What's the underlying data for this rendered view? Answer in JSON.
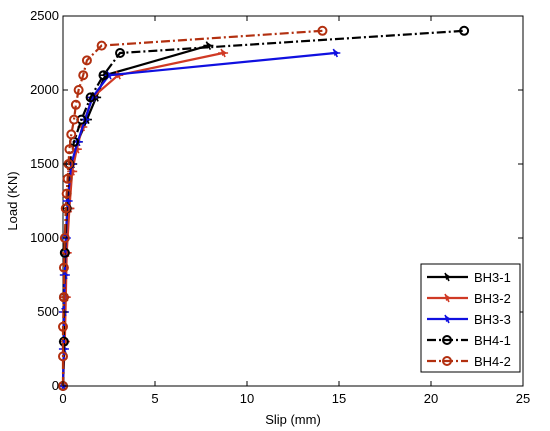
{
  "chart_data": {
    "type": "line",
    "xlabel": "Slip (mm)",
    "ylabel": "Load (KN)",
    "xlim": [
      0,
      25
    ],
    "ylim": [
      0,
      2500
    ],
    "xticks": [
      "0",
      "5",
      "10",
      "15",
      "20",
      "25"
    ],
    "yticks": [
      "0",
      "500",
      "1000",
      "1500",
      "2000",
      "2500"
    ],
    "grid": false,
    "legend_position": "bottom-right",
    "series": [
      {
        "name": "BH3-1",
        "color": "#000000",
        "dash": "solid",
        "marker": "star",
        "points": [
          [
            0,
            0
          ],
          [
            0.05,
            300
          ],
          [
            0.1,
            600
          ],
          [
            0.15,
            900
          ],
          [
            0.3,
            1200
          ],
          [
            0.5,
            1500
          ],
          [
            0.8,
            1650
          ],
          [
            1.3,
            1800
          ],
          [
            1.8,
            1950
          ],
          [
            2.3,
            2100
          ],
          [
            7.9,
            2300
          ]
        ]
      },
      {
        "name": "BH3-2",
        "color": "#d03a25",
        "dash": "solid",
        "marker": "star",
        "points": [
          [
            0,
            0
          ],
          [
            0.1,
            300
          ],
          [
            0.15,
            600
          ],
          [
            0.2,
            900
          ],
          [
            0.35,
            1200
          ],
          [
            0.5,
            1450
          ],
          [
            0.75,
            1600
          ],
          [
            1.05,
            1750
          ],
          [
            1.6,
            1950
          ],
          [
            3.0,
            2100
          ],
          [
            8.7,
            2250
          ]
        ]
      },
      {
        "name": "BH3-3",
        "color": "#1010e0",
        "dash": "solid",
        "marker": "star",
        "points": [
          [
            0,
            0
          ],
          [
            0.05,
            250
          ],
          [
            0.05,
            500
          ],
          [
            0.1,
            750
          ],
          [
            0.15,
            1000
          ],
          [
            0.25,
            1250
          ],
          [
            0.45,
            1500
          ],
          [
            0.8,
            1650
          ],
          [
            1.2,
            1800
          ],
          [
            1.6,
            1950
          ],
          [
            2.5,
            2100
          ],
          [
            14.8,
            2250
          ]
        ]
      },
      {
        "name": "BH4-1",
        "color": "#000000",
        "dash": "dashdot",
        "marker": "circle",
        "points": [
          [
            0,
            0
          ],
          [
            0.05,
            300
          ],
          [
            0.05,
            600
          ],
          [
            0.1,
            900
          ],
          [
            0.2,
            1200
          ],
          [
            0.35,
            1500
          ],
          [
            0.6,
            1650
          ],
          [
            1.0,
            1800
          ],
          [
            1.5,
            1950
          ],
          [
            2.2,
            2100
          ],
          [
            3.1,
            2250
          ],
          [
            21.8,
            2400
          ]
        ]
      },
      {
        "name": "BH4-2",
        "color": "#b23010",
        "dash": "dashdot",
        "marker": "circle",
        "points": [
          [
            0,
            0
          ],
          [
            0,
            200
          ],
          [
            0,
            400
          ],
          [
            0.05,
            600
          ],
          [
            0.05,
            800
          ],
          [
            0.1,
            1000
          ],
          [
            0.15,
            1200
          ],
          [
            0.2,
            1300
          ],
          [
            0.25,
            1400
          ],
          [
            0.3,
            1500
          ],
          [
            0.35,
            1600
          ],
          [
            0.45,
            1700
          ],
          [
            0.6,
            1800
          ],
          [
            0.7,
            1900
          ],
          [
            0.85,
            2000
          ],
          [
            1.1,
            2100
          ],
          [
            1.3,
            2200
          ],
          [
            2.1,
            2300
          ],
          [
            14.1,
            2400
          ]
        ]
      }
    ]
  }
}
